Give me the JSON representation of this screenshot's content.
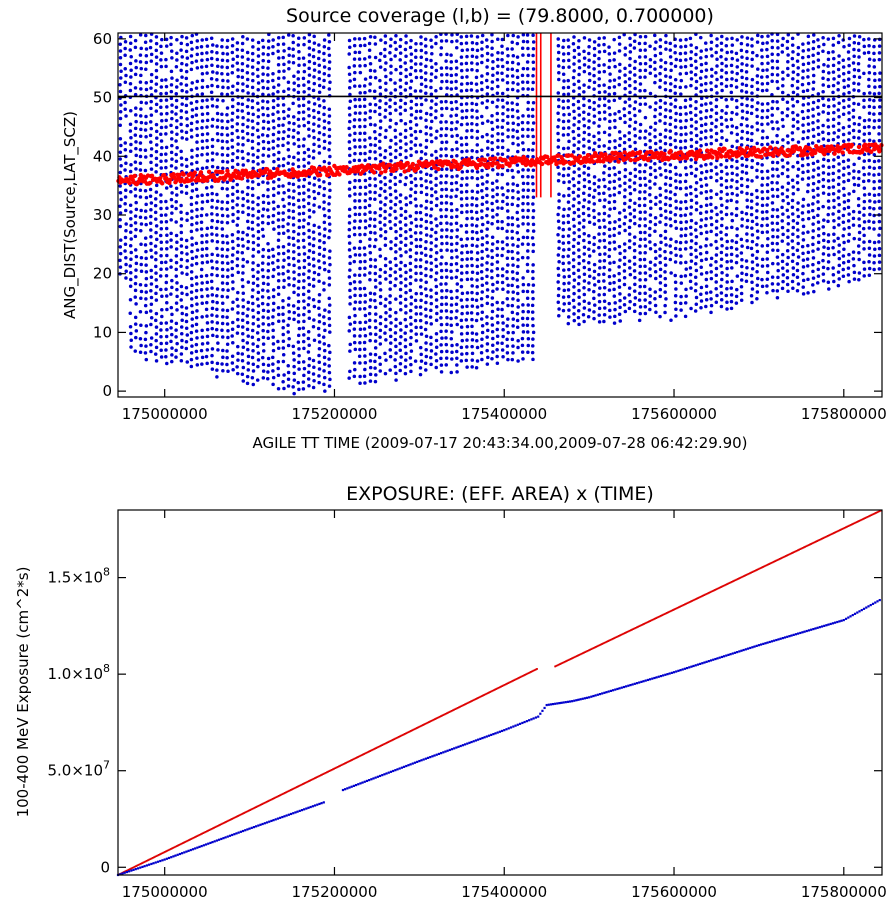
{
  "chart_data": [
    {
      "type": "scatter",
      "title": "Source coverage (l,b) = (79.8000, 0.700000)",
      "xlabel": "AGILE TT TIME (2009-07-17 20:43:34.00,2009-07-28 06:42:29.90)",
      "ylabel": "ANG_DIST(Source,LAT_SCZ)",
      "xlim": [
        174945000,
        175845000
      ],
      "ylim": [
        -1,
        61
      ],
      "x_ticks": [
        175000000,
        175200000,
        175400000,
        175600000,
        175800000
      ],
      "x_tick_labels": [
        "175000000",
        "175200000",
        "175400000",
        "175600000",
        "175800000"
      ],
      "y_ticks": [
        0,
        10,
        20,
        30,
        40,
        50,
        60
      ],
      "y_tick_labels": [
        "0",
        "10",
        "20",
        "30",
        "40",
        "50",
        "60"
      ],
      "threshold_line": {
        "y": 50.2,
        "color": "#000000"
      },
      "series": [
        {
          "color": "#0000cc",
          "description_points": "vertical columns of pointings",
          "data_gaps_x": [
            [
              175200000,
              175215000
            ],
            [
              175440000,
              175460000
            ]
          ],
          "column_bottom_y": [
            [
              174960000,
              7
            ],
            [
              175160000,
              0
            ],
            [
              175230000,
              2
            ],
            [
              175440000,
              6
            ],
            [
              175450000,
              12
            ],
            [
              175600000,
              13
            ],
            [
              175700000,
              16
            ],
            [
              175845000,
              20
            ]
          ],
          "column_top_y": 61
        },
        {
          "color": "#ff0000",
          "description_points": "source track",
          "x": [
            174945000,
            175000000,
            175100000,
            175200000,
            175300000,
            175400000,
            175450000,
            175500000,
            175600000,
            175700000,
            175800000,
            175845000
          ],
          "y": [
            35.8,
            36.2,
            36.9,
            37.6,
            38.3,
            38.9,
            39.3,
            39.7,
            40.2,
            40.7,
            41.2,
            41.5
          ]
        }
      ],
      "red_vertical_markers_x": [
        175438000,
        175443000,
        175455000
      ]
    },
    {
      "type": "line",
      "title": "EXPOSURE: (EFF. AREA) x (TIME)",
      "xlabel": "",
      "ylabel": "100-400 MeV Exposure (cm^2*s)",
      "xlim": [
        174945000,
        175845000
      ],
      "ylim": [
        -4000000,
        185000000
      ],
      "x_ticks": [
        175000000,
        175200000,
        175400000,
        175600000,
        175800000
      ],
      "x_tick_labels": [
        "175000000",
        "175200000",
        "175400000",
        "175600000",
        "175800000"
      ],
      "y_ticks": [
        0,
        50000000,
        100000000,
        150000000
      ],
      "y_tick_labels": [
        {
          "base": "0",
          "exp": ""
        },
        {
          "base": "5.0×10",
          "exp": "7"
        },
        {
          "base": "1.0×10",
          "exp": "8"
        },
        {
          "base": "1.5×10",
          "exp": "8"
        }
      ],
      "series": [
        {
          "color": "#dd0000",
          "x": [
            174945000,
            175440000,
            175445000,
            175455000,
            175460000,
            175845000
          ],
          "y": [
            -4000000,
            103000000,
            null,
            null,
            104000000,
            185000000
          ]
        },
        {
          "color": "#0000cc",
          "x": [
            174945000,
            175000000,
            175100000,
            175190000,
            175195000,
            175205000,
            175210000,
            175300000,
            175400000,
            175440000,
            175450000,
            175480000,
            175500000,
            175600000,
            175700000,
            175800000,
            175845000
          ],
          "y": [
            -4000000,
            4000000,
            20000000,
            34000000,
            null,
            null,
            40000000,
            55000000,
            71000000,
            78000000,
            84000000,
            86000000,
            88000000,
            101000000,
            115000000,
            128000000,
            139000000
          ]
        }
      ]
    }
  ]
}
